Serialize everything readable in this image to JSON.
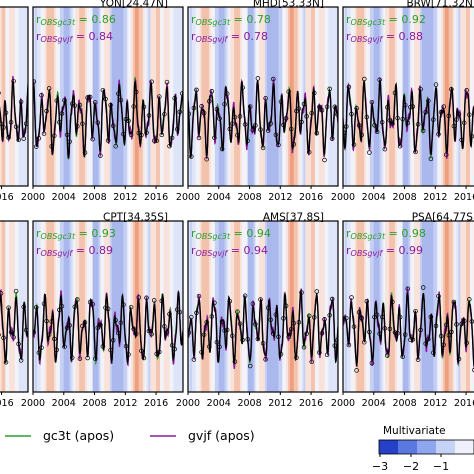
{
  "chart_data": [
    {
      "type": "line",
      "station": "",
      "title": "",
      "r_labels": [],
      "r_values": [],
      "x_ticks": [
        "2016"
      ],
      "xlim": [
        2010.5,
        2019.5
      ]
    },
    {
      "type": "line",
      "station": "YON",
      "lat": "24.47N",
      "title": "YON[24.47N]",
      "r_labels": [
        "r_OBSgc3t",
        "r_OBSgvjf"
      ],
      "r_values": [
        0.86,
        0.84
      ],
      "x_ticks": [
        "2000",
        "2004",
        "2008",
        "2012",
        "2016"
      ],
      "xlim": [
        2000,
        2019.5
      ]
    },
    {
      "type": "line",
      "station": "MHD",
      "lat": "53.33N",
      "title": "MHD[53.33N]",
      "r_labels": [
        "r_OBSgc3t",
        "r_OBSgvjf"
      ],
      "r_values": [
        0.78,
        0.78
      ],
      "x_ticks": [
        "2000",
        "2004",
        "2008",
        "2012",
        "2016"
      ],
      "xlim": [
        2000,
        2019.5
      ]
    },
    {
      "type": "line",
      "station": "BRW",
      "lat": "71.32N",
      "title": "BRW[71.32N]",
      "r_labels": [
        "r_OBSgc3t",
        "r_OBSgvjf"
      ],
      "r_values": [
        0.92,
        0.88
      ],
      "x_ticks": [
        "2000",
        "2004",
        "2008",
        "2012",
        "2016"
      ],
      "xlim": [
        2000,
        2019.5
      ]
    },
    {
      "type": "line",
      "station": "",
      "title": "",
      "r_labels": [],
      "r_values": [],
      "x_ticks": [
        "2016"
      ],
      "xlim": [
        2010.5,
        2019.5
      ]
    },
    {
      "type": "line",
      "station": "CPT",
      "lat": "34.35S",
      "title": "CPT[34.35S]",
      "r_labels": [
        "r_OBSgc3t",
        "r_OBSgvjf"
      ],
      "r_values": [
        0.93,
        0.89
      ],
      "x_ticks": [
        "2000",
        "2004",
        "2008",
        "2012",
        "2016"
      ],
      "xlim": [
        2000,
        2019.5
      ]
    },
    {
      "type": "line",
      "station": "AMS",
      "lat": "37.8S",
      "title": "AMS[37.8S]",
      "r_labels": [
        "r_OBSgc3t",
        "r_OBSgvjf"
      ],
      "r_values": [
        0.94,
        0.94
      ],
      "x_ticks": [
        "2000",
        "2004",
        "2008",
        "2012",
        "2016"
      ],
      "xlim": [
        2000,
        2019.5
      ]
    },
    {
      "type": "line",
      "station": "PSA",
      "lat": "64.77S",
      "title": "PSA[64.77S]",
      "r_labels": [
        "r_OBSgc3t",
        "r_OBSgvjf"
      ],
      "r_values": [
        0.98,
        0.99
      ],
      "x_ticks": [
        "2000",
        "2004",
        "2008",
        "2012",
        "2016"
      ],
      "xlim": [
        2000,
        2019.5
      ]
    }
  ],
  "legend": {
    "entries": [
      {
        "label": "gc3t (apos)",
        "color": "#2ca02c"
      },
      {
        "label": "gvjf (apos)",
        "color": "#8b1a9e"
      }
    ],
    "placement": "bottom"
  },
  "colorbar": {
    "title": "Multivariate",
    "ticks": [
      "−3",
      "−2",
      "−1"
    ],
    "colors": [
      "#2740c8",
      "#5a78e0",
      "#8ea6f0",
      "#c6d2f6",
      "#eef0fb"
    ]
  },
  "colors": {
    "obs": "#000000",
    "gc3t": "#2ca02c",
    "gvjf": "#8b1a9e",
    "r_gc3t_text": "#2ca02c",
    "r_gvjf_text": "#8b1a9e"
  }
}
